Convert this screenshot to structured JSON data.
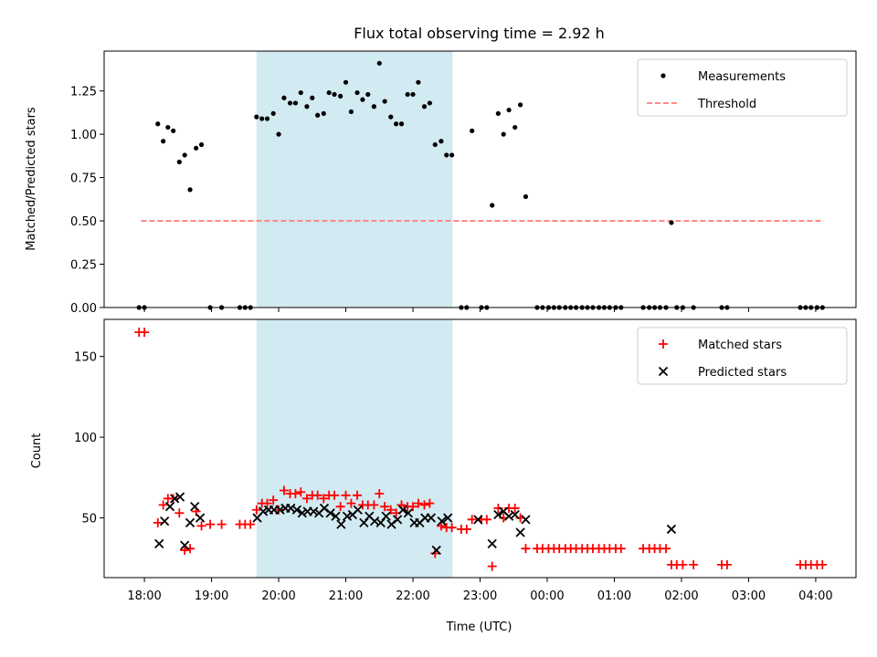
{
  "title": "Flux total observing time = 2.92 h",
  "colors": {
    "shade": "#add8e6",
    "threshold": "#ff7f7f",
    "measurement": "#000000",
    "matched": "#ff0000",
    "predicted": "#000000"
  },
  "chart_data": [
    {
      "type": "scatter",
      "ylabel": "Matched/Predicted stars",
      "ylim": [
        0,
        1.48
      ],
      "yticks": [
        0.0,
        0.25,
        0.5,
        0.75,
        1.0,
        1.25
      ],
      "ytick_labels": [
        "0.00",
        "0.25",
        "0.50",
        "0.75",
        "1.00",
        "1.25"
      ],
      "xlim": [
        17.4,
        28.6
      ],
      "shaded_span": [
        19.67,
        22.59
      ],
      "threshold": {
        "value": 0.5,
        "x_range": [
          17.95,
          28.12
        ]
      },
      "legend": {
        "placement": "top-right",
        "entries": [
          "Measurements",
          "Threshold"
        ]
      },
      "series": [
        {
          "name": "Measurements",
          "points": [
            [
              17.92,
              0
            ],
            [
              18.0,
              0
            ],
            [
              18.2,
              1.06
            ],
            [
              18.28,
              0.96
            ],
            [
              18.35,
              1.04
            ],
            [
              18.43,
              1.02
            ],
            [
              18.52,
              0.84
            ],
            [
              18.6,
              0.88
            ],
            [
              18.68,
              0.68
            ],
            [
              18.77,
              0.92
            ],
            [
              18.85,
              0.94
            ],
            [
              18.98,
              0
            ],
            [
              19.15,
              0
            ],
            [
              19.42,
              0
            ],
            [
              19.5,
              0
            ],
            [
              19.58,
              0
            ],
            [
              19.67,
              1.1
            ],
            [
              19.75,
              1.09
            ],
            [
              19.83,
              1.09
            ],
            [
              19.92,
              1.12
            ],
            [
              20.0,
              1.0
            ],
            [
              20.08,
              1.21
            ],
            [
              20.17,
              1.18
            ],
            [
              20.25,
              1.18
            ],
            [
              20.33,
              1.24
            ],
            [
              20.42,
              1.16
            ],
            [
              20.5,
              1.21
            ],
            [
              20.58,
              1.11
            ],
            [
              20.67,
              1.12
            ],
            [
              20.75,
              1.24
            ],
            [
              20.83,
              1.23
            ],
            [
              20.92,
              1.22
            ],
            [
              21.0,
              1.3
            ],
            [
              21.08,
              1.13
            ],
            [
              21.17,
              1.24
            ],
            [
              21.25,
              1.2
            ],
            [
              21.33,
              1.23
            ],
            [
              21.42,
              1.16
            ],
            [
              21.5,
              1.41
            ],
            [
              21.58,
              1.19
            ],
            [
              21.67,
              1.1
            ],
            [
              21.75,
              1.06
            ],
            [
              21.83,
              1.06
            ],
            [
              21.92,
              1.23
            ],
            [
              22.0,
              1.23
            ],
            [
              22.08,
              1.3
            ],
            [
              22.17,
              1.16
            ],
            [
              22.25,
              1.18
            ],
            [
              22.33,
              0.94
            ],
            [
              22.42,
              0.96
            ],
            [
              22.5,
              0.88
            ],
            [
              22.58,
              0.88
            ],
            [
              22.72,
              0
            ],
            [
              22.8,
              0
            ],
            [
              22.88,
              1.02
            ],
            [
              23.02,
              0
            ],
            [
              23.1,
              0
            ],
            [
              23.18,
              0.59
            ],
            [
              23.27,
              1.12
            ],
            [
              23.35,
              1.0
            ],
            [
              23.43,
              1.14
            ],
            [
              23.52,
              1.04
            ],
            [
              23.6,
              1.17
            ],
            [
              23.68,
              0.64
            ],
            [
              23.85,
              0
            ],
            [
              23.93,
              0
            ],
            [
              24.02,
              0
            ],
            [
              24.1,
              0
            ],
            [
              24.18,
              0
            ],
            [
              24.27,
              0
            ],
            [
              24.35,
              0
            ],
            [
              24.43,
              0
            ],
            [
              24.52,
              0
            ],
            [
              24.6,
              0
            ],
            [
              24.68,
              0
            ],
            [
              24.77,
              0
            ],
            [
              24.85,
              0
            ],
            [
              24.93,
              0
            ],
            [
              25.02,
              0
            ],
            [
              25.1,
              0
            ],
            [
              25.43,
              0
            ],
            [
              25.52,
              0
            ],
            [
              25.6,
              0
            ],
            [
              25.68,
              0
            ],
            [
              25.77,
              0
            ],
            [
              25.85,
              0.49
            ],
            [
              25.93,
              0
            ],
            [
              26.02,
              0
            ],
            [
              26.18,
              0
            ],
            [
              26.6,
              0
            ],
            [
              26.68,
              0
            ],
            [
              27.77,
              0
            ],
            [
              27.85,
              0
            ],
            [
              27.93,
              0
            ],
            [
              28.02,
              0
            ],
            [
              28.1,
              0
            ]
          ]
        }
      ]
    },
    {
      "type": "scatter",
      "xlabel": "Time (UTC)",
      "ylabel": "Count",
      "ylim": [
        13,
        173
      ],
      "yticks": [
        50,
        100,
        150
      ],
      "ytick_labels": [
        "50",
        "100",
        "150"
      ],
      "xlim": [
        17.4,
        28.6
      ],
      "xticks": [
        18,
        19,
        20,
        21,
        22,
        23,
        24,
        25,
        26,
        27,
        28
      ],
      "xtick_labels": [
        "18:00",
        "19:00",
        "20:00",
        "21:00",
        "22:00",
        "23:00",
        "00:00",
        "01:00",
        "02:00",
        "03:00",
        "04:00"
      ],
      "shaded_span": [
        19.67,
        22.59
      ],
      "legend": {
        "placement": "top-right",
        "entries": [
          "Matched stars",
          "Predicted stars"
        ]
      },
      "series": [
        {
          "name": "Matched stars",
          "marker": "+",
          "points": [
            [
              17.92,
              165
            ],
            [
              18.0,
              165
            ],
            [
              18.2,
              47
            ],
            [
              18.28,
              58
            ],
            [
              18.35,
              62
            ],
            [
              18.43,
              62
            ],
            [
              18.52,
              53
            ],
            [
              18.6,
              30
            ],
            [
              18.68,
              31
            ],
            [
              18.77,
              54
            ],
            [
              18.85,
              45
            ],
            [
              18.98,
              46
            ],
            [
              19.15,
              46
            ],
            [
              19.42,
              46
            ],
            [
              19.5,
              46
            ],
            [
              19.58,
              46
            ],
            [
              19.67,
              55
            ],
            [
              19.75,
              59
            ],
            [
              19.83,
              59
            ],
            [
              19.92,
              61
            ],
            [
              20.0,
              55
            ],
            [
              20.08,
              67
            ],
            [
              20.17,
              65
            ],
            [
              20.25,
              65
            ],
            [
              20.33,
              66
            ],
            [
              20.42,
              62
            ],
            [
              20.5,
              64
            ],
            [
              20.58,
              64
            ],
            [
              20.67,
              62
            ],
            [
              20.75,
              64
            ],
            [
              20.83,
              64
            ],
            [
              20.92,
              57
            ],
            [
              21.0,
              64
            ],
            [
              21.08,
              59
            ],
            [
              21.17,
              64
            ],
            [
              21.25,
              58
            ],
            [
              21.33,
              58
            ],
            [
              21.42,
              58
            ],
            [
              21.5,
              65
            ],
            [
              21.58,
              57
            ],
            [
              21.67,
              55
            ],
            [
              21.75,
              53
            ],
            [
              21.83,
              58
            ],
            [
              21.92,
              57
            ],
            [
              22.0,
              57
            ],
            [
              22.08,
              59
            ],
            [
              22.17,
              58
            ],
            [
              22.25,
              59
            ],
            [
              22.33,
              28
            ],
            [
              22.42,
              45
            ],
            [
              22.5,
              44
            ],
            [
              22.58,
              44
            ],
            [
              22.72,
              43
            ],
            [
              22.8,
              43
            ],
            [
              22.88,
              49
            ],
            [
              23.02,
              49
            ],
            [
              23.1,
              49
            ],
            [
              23.18,
              20
            ],
            [
              23.27,
              56
            ],
            [
              23.35,
              50
            ],
            [
              23.43,
              56
            ],
            [
              23.52,
              56
            ],
            [
              23.6,
              50
            ],
            [
              23.68,
              31
            ],
            [
              23.85,
              31
            ],
            [
              23.93,
              31
            ],
            [
              24.02,
              31
            ],
            [
              24.1,
              31
            ],
            [
              24.18,
              31
            ],
            [
              24.27,
              31
            ],
            [
              24.35,
              31
            ],
            [
              24.43,
              31
            ],
            [
              24.52,
              31
            ],
            [
              24.6,
              31
            ],
            [
              24.68,
              31
            ],
            [
              24.77,
              31
            ],
            [
              24.85,
              31
            ],
            [
              24.93,
              31
            ],
            [
              25.02,
              31
            ],
            [
              25.1,
              31
            ],
            [
              25.43,
              31
            ],
            [
              25.52,
              31
            ],
            [
              25.6,
              31
            ],
            [
              25.68,
              31
            ],
            [
              25.77,
              31
            ],
            [
              25.85,
              21
            ],
            [
              25.93,
              21
            ],
            [
              26.02,
              21
            ],
            [
              26.18,
              21
            ],
            [
              26.6,
              21
            ],
            [
              26.68,
              21
            ],
            [
              27.77,
              21
            ],
            [
              27.85,
              21
            ],
            [
              27.93,
              21
            ],
            [
              28.02,
              21
            ],
            [
              28.1,
              21
            ]
          ]
        },
        {
          "name": "Predicted stars",
          "marker": "x",
          "points": [
            [
              18.22,
              34
            ],
            [
              18.3,
              48
            ],
            [
              18.38,
              57
            ],
            [
              18.45,
              62
            ],
            [
              18.53,
              63
            ],
            [
              18.6,
              33
            ],
            [
              18.68,
              47
            ],
            [
              18.75,
              57
            ],
            [
              18.83,
              50
            ],
            [
              19.68,
              50
            ],
            [
              19.77,
              54
            ],
            [
              19.85,
              55
            ],
            [
              19.93,
              55
            ],
            [
              20.02,
              55
            ],
            [
              20.1,
              56
            ],
            [
              20.18,
              56
            ],
            [
              20.27,
              55
            ],
            [
              20.35,
              53
            ],
            [
              20.43,
              54
            ],
            [
              20.52,
              54
            ],
            [
              20.6,
              53
            ],
            [
              20.68,
              56
            ],
            [
              20.77,
              53
            ],
            [
              20.85,
              51
            ],
            [
              20.93,
              46
            ],
            [
              21.02,
              51
            ],
            [
              21.1,
              52
            ],
            [
              21.18,
              55
            ],
            [
              21.27,
              47
            ],
            [
              21.35,
              51
            ],
            [
              21.43,
              48
            ],
            [
              21.52,
              47
            ],
            [
              21.6,
              51
            ],
            [
              21.68,
              46
            ],
            [
              21.77,
              49
            ],
            [
              21.85,
              55
            ],
            [
              21.93,
              53
            ],
            [
              22.02,
              47
            ],
            [
              22.1,
              47
            ],
            [
              22.18,
              50
            ],
            [
              22.27,
              50
            ],
            [
              22.35,
              30
            ],
            [
              22.43,
              48
            ],
            [
              22.52,
              50
            ],
            [
              22.97,
              49
            ],
            [
              23.18,
              34
            ],
            [
              23.27,
              52
            ],
            [
              23.35,
              54
            ],
            [
              23.43,
              51
            ],
            [
              23.52,
              52
            ],
            [
              23.6,
              41
            ],
            [
              23.68,
              49
            ],
            [
              25.85,
              43
            ]
          ]
        }
      ]
    }
  ]
}
